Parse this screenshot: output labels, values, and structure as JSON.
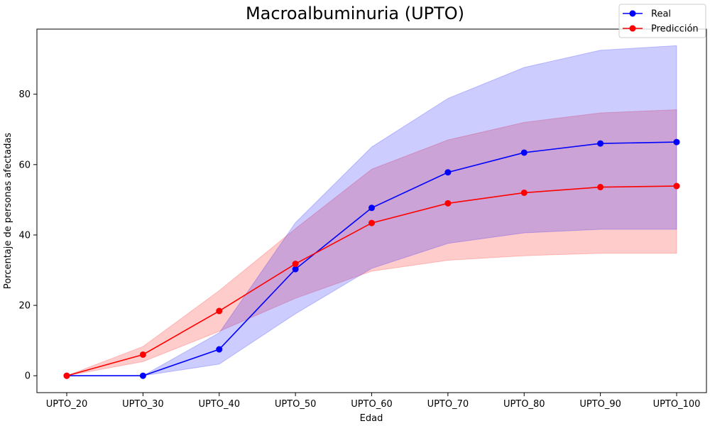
{
  "chart_data": {
    "type": "line",
    "title": "Macroalbuminuria (UPTO)",
    "xlabel": "Edad",
    "ylabel": "Porcentaje de personas afectadas",
    "categories": [
      "UPTO_20",
      "UPTO_30",
      "UPTO_40",
      "UPTO_50",
      "UPTO_60",
      "UPTO_70",
      "UPTO_80",
      "UPTO_90",
      "UPTO_100"
    ],
    "ylim": [
      -4.8,
      98.5
    ],
    "yticks": [
      0,
      20,
      40,
      60,
      80
    ],
    "grid": false,
    "legend_position": "top-right",
    "series": [
      {
        "name": "Real",
        "color": "#0000ff",
        "band_color": "#0000ff",
        "values": [
          0,
          0,
          7.5,
          30.3,
          47.7,
          57.8,
          63.4,
          66.0,
          66.4
        ],
        "lower": [
          0,
          0,
          3.3,
          17.6,
          30.5,
          37.6,
          40.6,
          41.6,
          41.6
        ],
        "upper": [
          0,
          0,
          12.2,
          43.5,
          65.0,
          78.8,
          87.6,
          92.5,
          93.8
        ]
      },
      {
        "name": "Predicción",
        "color": "#ff0000",
        "band_color": "#ff0000",
        "values": [
          0,
          6.0,
          18.4,
          31.8,
          43.4,
          49.0,
          52.0,
          53.6,
          53.9
        ],
        "lower": [
          0,
          4.0,
          12.6,
          22.0,
          29.7,
          32.8,
          34.1,
          34.8,
          34.8
        ],
        "upper": [
          0,
          8.3,
          24.2,
          41.8,
          58.7,
          67.0,
          72.0,
          74.7,
          75.6
        ]
      }
    ]
  }
}
